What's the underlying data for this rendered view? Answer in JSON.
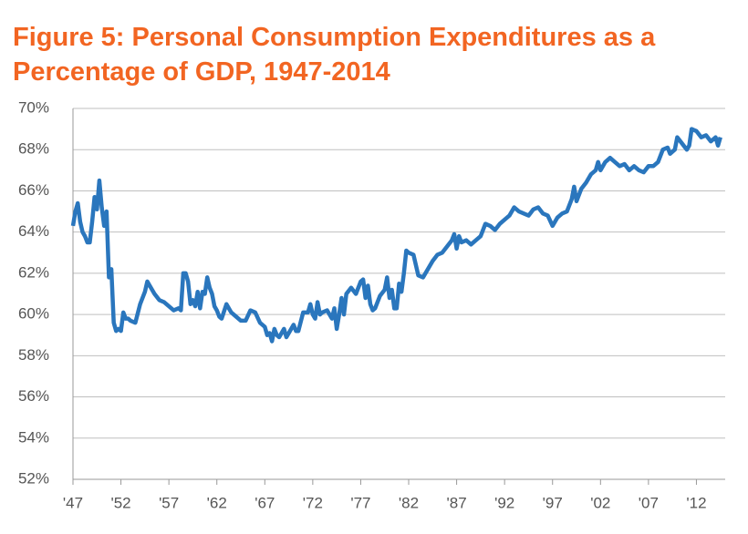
{
  "chart_data": {
    "type": "line",
    "title": "Figure 5: Personal Consumption Expenditures as a Percentage of GDP, 1947-2014",
    "x": [
      1947,
      1947.25,
      1947.5,
      1947.75,
      1948,
      1948.25,
      1948.5,
      1948.75,
      1949,
      1949.25,
      1949.5,
      1949.75,
      1950,
      1950.25,
      1950.5,
      1950.75,
      1951,
      1951.25,
      1951.5,
      1951.75,
      1952,
      1952.25,
      1952.5,
      1952.75,
      1953,
      1953.5,
      1954,
      1954.5,
      1954.75,
      1955,
      1955.5,
      1956,
      1956.5,
      1957,
      1957.5,
      1958,
      1958.25,
      1958.5,
      1958.75,
      1959,
      1959.25,
      1959.5,
      1959.75,
      1960,
      1960.25,
      1960.5,
      1960.75,
      1961,
      1961.25,
      1961.5,
      1961.75,
      1962,
      1962.25,
      1962.5,
      1963,
      1963.5,
      1964,
      1964.5,
      1965,
      1965.5,
      1966,
      1966.5,
      1967,
      1967.25,
      1967.5,
      1967.75,
      1968,
      1968.25,
      1968.5,
      1969,
      1969.25,
      1969.5,
      1970,
      1970.25,
      1970.5,
      1971,
      1971.5,
      1971.75,
      1972,
      1972.25,
      1972.5,
      1972.75,
      1973,
      1973.5,
      1974,
      1974.25,
      1974.5,
      1974.75,
      1975,
      1975.25,
      1975.5,
      1976,
      1976.5,
      1977,
      1977.25,
      1977.5,
      1977.75,
      1978,
      1978.25,
      1978.5,
      1979,
      1979.5,
      1979.75,
      1980,
      1980.25,
      1980.5,
      1980.75,
      1981,
      1981.25,
      1981.5,
      1981.75,
      1982,
      1982.5,
      1983,
      1983.5,
      1984,
      1984.5,
      1985,
      1985.5,
      1986,
      1986.5,
      1986.75,
      1987,
      1987.25,
      1987.5,
      1988,
      1988.5,
      1989,
      1989.5,
      1990,
      1990.5,
      1991,
      1991.5,
      1992,
      1992.5,
      1993,
      1993.5,
      1994,
      1994.5,
      1995,
      1995.5,
      1996,
      1996.5,
      1997,
      1997.5,
      1998,
      1998.5,
      1999,
      1999.25,
      1999.5,
      2000,
      2000.5,
      2001,
      2001.5,
      2001.75,
      2002,
      2002.5,
      2003,
      2003.5,
      2004,
      2004.5,
      2005,
      2005.5,
      2006,
      2006.5,
      2007,
      2007.5,
      2008,
      2008.5,
      2009,
      2009.25,
      2009.75,
      2010,
      2010.5,
      2011,
      2011.25,
      2011.5,
      2012,
      2012.5,
      2013,
      2013.5,
      2014,
      2014.25,
      2014.5
    ],
    "series": [
      {
        "color": "#2a76bd",
        "values": [
          64.3,
          65.0,
          65.4,
          64.5,
          64.0,
          63.8,
          63.5,
          63.5,
          64.5,
          65.7,
          65.1,
          66.5,
          65.2,
          64.3,
          65.0,
          61.8,
          62.2,
          59.6,
          59.2,
          59.3,
          59.2,
          60.1,
          59.8,
          59.8,
          59.7,
          59.6,
          60.5,
          61.1,
          61.6,
          61.4,
          61.0,
          60.7,
          60.6,
          60.4,
          60.2,
          60.3,
          60.2,
          62.0,
          62.0,
          61.6,
          60.5,
          60.7,
          60.4,
          61.1,
          60.3,
          61.1,
          61.0,
          61.8,
          61.3,
          61.0,
          60.4,
          60.2,
          59.9,
          59.8,
          60.5,
          60.1,
          59.9,
          59.7,
          59.7,
          60.2,
          60.1,
          59.6,
          59.4,
          59.0,
          59.1,
          58.7,
          59.3,
          59.0,
          58.9,
          59.3,
          58.9,
          59.1,
          59.5,
          59.2,
          59.2,
          60.1,
          60.1,
          60.5,
          60.0,
          59.8,
          60.6,
          60.0,
          60.1,
          60.2,
          59.8,
          60.3,
          59.3,
          60.0,
          60.8,
          60.0,
          61.0,
          61.3,
          61.0,
          61.6,
          61.7,
          60.8,
          61.4,
          60.5,
          60.2,
          60.3,
          60.9,
          61.2,
          61.8,
          60.8,
          61.2,
          60.3,
          60.3,
          61.5,
          61.1,
          62.0,
          63.1,
          63.0,
          62.9,
          61.9,
          61.8,
          62.2,
          62.6,
          62.9,
          63.0,
          63.3,
          63.6,
          63.9,
          63.2,
          63.8,
          63.5,
          63.6,
          63.4,
          63.6,
          63.8,
          64.4,
          64.3,
          64.1,
          64.4,
          64.6,
          64.8,
          65.2,
          65.0,
          64.9,
          64.8,
          65.1,
          65.2,
          64.9,
          64.8,
          64.3,
          64.7,
          64.9,
          65.0,
          65.6,
          66.2,
          65.5,
          66.1,
          66.4,
          66.8,
          67.0,
          67.4,
          67.0,
          67.4,
          67.6,
          67.4,
          67.2,
          67.3,
          67.0,
          67.2,
          67.0,
          66.9,
          67.2,
          67.2,
          67.4,
          68.0,
          68.1,
          67.8,
          68.0,
          68.6,
          68.3,
          68.0,
          68.2,
          69.0,
          68.9,
          68.6,
          68.7,
          68.4,
          68.6,
          68.2,
          68.6
        ]
      }
    ],
    "xlim": [
      1947,
      2015
    ],
    "xticks": [
      {
        "value": 1947,
        "label": "'47"
      },
      {
        "value": 1952,
        "label": "'52"
      },
      {
        "value": 1957,
        "label": "'57"
      },
      {
        "value": 1962,
        "label": "'62"
      },
      {
        "value": 1967,
        "label": "'67"
      },
      {
        "value": 1972,
        "label": "'72"
      },
      {
        "value": 1977,
        "label": "'77"
      },
      {
        "value": 1982,
        "label": "'82"
      },
      {
        "value": 1987,
        "label": "'87"
      },
      {
        "value": 1992,
        "label": "'92"
      },
      {
        "value": 1997,
        "label": "'97"
      },
      {
        "value": 2002,
        "label": "'02"
      },
      {
        "value": 2007,
        "label": "'07"
      },
      {
        "value": 2012,
        "label": "'12"
      }
    ],
    "ylim": [
      52,
      70
    ],
    "yticks": [
      {
        "value": 52,
        "label": "52%"
      },
      {
        "value": 54,
        "label": "54%"
      },
      {
        "value": 56,
        "label": "56%"
      },
      {
        "value": 58,
        "label": "58%"
      },
      {
        "value": 60,
        "label": "60%"
      },
      {
        "value": 62,
        "label": "62%"
      },
      {
        "value": 64,
        "label": "64%"
      },
      {
        "value": 66,
        "label": "66%"
      },
      {
        "value": 68,
        "label": "68%"
      },
      {
        "value": 70,
        "label": "70%"
      }
    ],
    "grid": true
  }
}
